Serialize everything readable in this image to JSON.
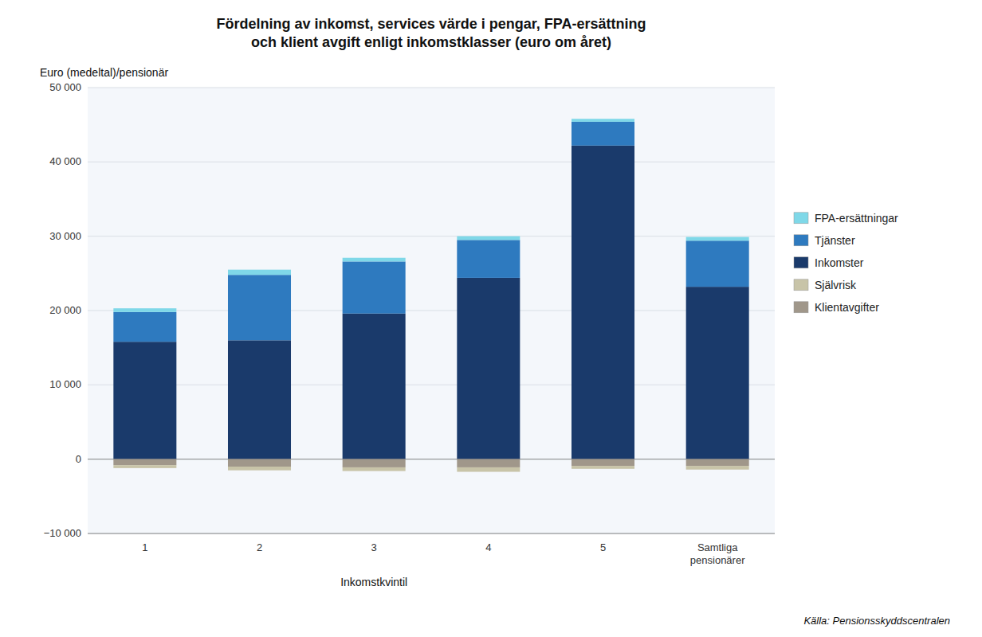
{
  "chart_data": {
    "type": "bar",
    "stacked": true,
    "title": "Fördelning av inkomst, services värde i pengar, FPA-ersättning\noch klient avgift enligt inkomstklasser (euro om året)",
    "ylabel": "Euro (medeltal)/pensionär",
    "xlabel": "Inkomstkvintil",
    "source": "Källa: Pensionsskyddscentralen",
    "categories": [
      "1",
      "2",
      "3",
      "4",
      "5",
      "Samtliga\npensionärer"
    ],
    "series": [
      {
        "name": "Klientavgifter",
        "color": "#a0978a",
        "values": [
          -800,
          -1000,
          -1100,
          -1100,
          -900,
          -900
        ]
      },
      {
        "name": "Självrisk",
        "color": "#c8c4a8",
        "values": [
          -400,
          -500,
          -500,
          -600,
          -400,
          -500
        ]
      },
      {
        "name": "Inkomster",
        "color": "#1a3a6b",
        "values": [
          15800,
          16000,
          19600,
          24400,
          42200,
          23200
        ]
      },
      {
        "name": "Tjänster",
        "color": "#2e7abf",
        "values": [
          4000,
          8800,
          7000,
          5100,
          3200,
          6200
        ]
      },
      {
        "name": "FPA-ersättningar",
        "color": "#7fd8e8",
        "values": [
          500,
          700,
          500,
          500,
          400,
          500
        ]
      }
    ],
    "ylim": [
      -10000,
      50000
    ],
    "yticks": [
      {
        "value": -10000,
        "label": "−10 000"
      },
      0,
      {
        "value": 10000,
        "label": "10 000"
      },
      {
        "value": 20000,
        "label": "20 000"
      },
      {
        "value": 30000,
        "label": "30 000"
      },
      {
        "value": 40000,
        "label": "40 000"
      },
      {
        "value": 50000,
        "label": "50 000"
      }
    ],
    "grid": true,
    "legend": "right"
  }
}
